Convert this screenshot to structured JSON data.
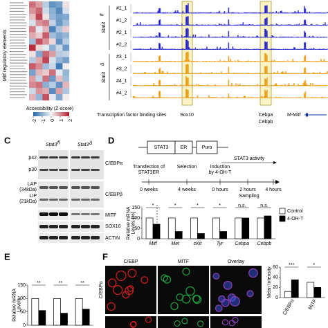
{
  "panel_a": {
    "y_label": "Mitf regulatory elements",
    "colorbar_label": "Accessibility (Z-score)",
    "colorbar_ticks": [
      -2,
      -1,
      0,
      1,
      2
    ],
    "heatmap": [
      [
        1.2,
        0.8,
        -0.6,
        -1.4,
        -1.2,
        0.2
      ],
      [
        0.9,
        1.3,
        -0.4,
        -1.0,
        -1.5,
        -0.3
      ],
      [
        0.5,
        1.6,
        0.2,
        -0.9,
        -1.2,
        -1.1
      ],
      [
        -0.3,
        0.9,
        1.1,
        -0.5,
        -1.3,
        -0.8
      ],
      [
        1.1,
        -0.2,
        0.6,
        -1.6,
        -0.7,
        0.4
      ],
      [
        0.7,
        0.4,
        1.4,
        -0.8,
        -1.1,
        -0.9
      ],
      [
        -0.8,
        1.5,
        0.9,
        0.3,
        -1.4,
        -0.6
      ],
      [
        1.8,
        0.3,
        -0.2,
        -1.0,
        -0.4,
        -1.3
      ],
      [
        0.2,
        -1.1,
        1.3,
        0.8,
        -0.6,
        -0.5
      ],
      [
        -0.6,
        0.7,
        1.6,
        -0.3,
        -0.9,
        -1.2
      ],
      [
        1.4,
        1.0,
        -0.8,
        -0.4,
        -1.7,
        0.1
      ],
      [
        -1.2,
        0.6,
        0.4,
        1.2,
        -0.2,
        -0.9
      ],
      [
        0.8,
        -0.5,
        1.2,
        -1.3,
        0.5,
        -0.8
      ],
      [
        1.0,
        1.2,
        -1.0,
        -0.6,
        -1.4,
        0.6
      ],
      [
        -0.4,
        0.9,
        0.7,
        -1.5,
        0.8,
        -0.7
      ],
      [
        0.6,
        -0.9,
        1.5,
        -0.2,
        -1.1,
        0.1
      ]
    ]
  },
  "panel_b": {
    "tracks": [
      "#1_1",
      "#1_2",
      "#2_1",
      "#2_2",
      "#3_1",
      "#3_2",
      "#4_1",
      "#4_2"
    ],
    "group_fl": {
      "name": "Stat3",
      "sup": "fl"
    },
    "group_d": {
      "name": "Stat3",
      "sup": "Δ"
    },
    "tfbs_label": "Transcription factor binding sites",
    "sites": [
      "Sox10",
      "Cebpa",
      "Cebpb"
    ],
    "gene": "M-Mitf"
  },
  "panel_c": {
    "letter": "C",
    "group_fl": {
      "name": "Stat3",
      "sup": "fl"
    },
    "group_d": {
      "name": "Stat3",
      "sup": "Δ"
    },
    "bands": [
      "p42",
      "p30",
      "LAP",
      "(34kDa)",
      "LIP",
      "(21kDa)"
    ],
    "proteins": [
      "C/EBPα",
      "C/EBPβ",
      "MITF",
      "SOX10",
      "ACTIN"
    ]
  },
  "panel_d": {
    "letter": "D",
    "construct": [
      "STAT3",
      "ER",
      "Puro"
    ],
    "activity": "STAT3 activity",
    "events": [
      [
        "Transfection of",
        "STAT3ER"
      ],
      [
        "Selection"
      ],
      [
        "Induction",
        "by 4-OH-T"
      ]
    ],
    "times": [
      "0 weeks",
      "4 weeks",
      "0 hours",
      "2 hours",
      "4 hours"
    ],
    "sampling": "Sampling",
    "chart": {
      "type": "bar",
      "y_label": [
        "Relative mRNA",
        "Levels [%]"
      ],
      "categories": [
        "Mitf",
        "Met",
        "cKit",
        "Tyr",
        "Cebpa",
        "Cebpb"
      ],
      "series": [
        {
          "name": "Control",
          "color": "#ffffff",
          "values": [
            100,
            100,
            100,
            100,
            100,
            100
          ]
        },
        {
          "name": "4-OH-T",
          "color": "#000000",
          "values": [
            70,
            35,
            25,
            35,
            100,
            110
          ]
        }
      ],
      "significance": [
        "*",
        "*",
        "*",
        "*",
        "n.s.",
        "n.s."
      ],
      "ylim": [
        0,
        150
      ],
      "yticks": [
        0,
        50,
        100,
        150
      ]
    }
  },
  "panel_e": {
    "letter": "E",
    "chart": {
      "type": "bar",
      "y_label": [
        "Relative mRNA",
        "Levels"
      ],
      "categories": [
        null,
        null,
        null
      ],
      "series": [
        {
          "name": null,
          "color": "#ffffff",
          "values": [
            100,
            100,
            100
          ]
        },
        {
          "name": null,
          "color": "#000000",
          "values": [
            55,
            45,
            60
          ]
        }
      ],
      "significance": [
        "**",
        "**",
        "**"
      ],
      "ylim": [
        0,
        150
      ],
      "yticks": [
        0,
        50,
        100,
        150
      ]
    }
  },
  "panel_f": {
    "letter": "F",
    "columns": [
      "C/EBP",
      "MITF",
      "Overlay"
    ],
    "row": "C/EBPα",
    "chart": {
      "type": "bar",
      "y_label": [
        "Mean Intensity"
      ],
      "categories": [
        "C/EBPα",
        "MITF"
      ],
      "series": [
        {
          "name": null,
          "color": "#ffffff",
          "values": [
            12,
            30
          ]
        },
        {
          "name": null,
          "color": "#000000",
          "values": [
            35,
            20
          ]
        }
      ],
      "significance": [
        "***",
        "*"
      ],
      "ylim": [
        0,
        60
      ],
      "yticks": [
        0,
        20,
        40,
        60
      ]
    }
  }
}
